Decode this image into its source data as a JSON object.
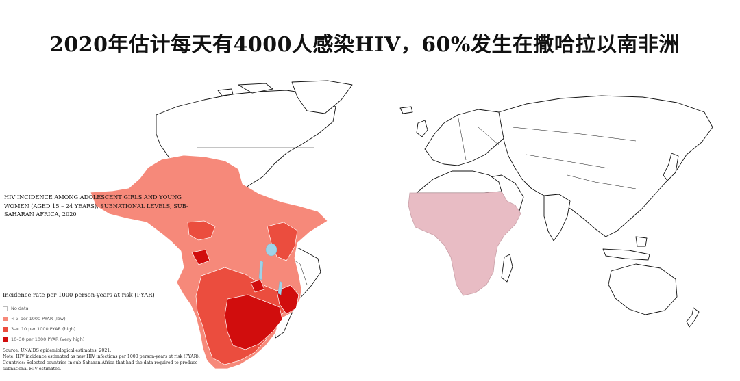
{
  "slide": {
    "title": "2020年估计每天有4000人感染HIV，60%发生在撒哈拉以南非洲"
  },
  "africa_map": {
    "title_lines": [
      "HIV INCIDENCE AMONG ADOLESCENT GIRLS AND YOUNG",
      "WOMEN (AGED 15 – 24 YEARS), SUBNATIONAL LEVELS, SUB-",
      "SAHARAN AFRICA, 2020"
    ],
    "legend": {
      "title": "Incidence rate per 1000 person-years at risk (PYAR)",
      "items": [
        {
          "label": "No data",
          "color": "#ffffff"
        },
        {
          "label": "< 3 per 1000 PYAR (low)",
          "color": "#f6897a"
        },
        {
          "label": "3–< 10 per 1000 PYAR (high)",
          "color": "#eb4d3e"
        },
        {
          "label": "10–30 per 1000 PYAR (very high)",
          "color": "#d10d0d"
        }
      ]
    },
    "notes": [
      "Source: UNAIDS epidemiological estimates, 2021.",
      "Note: HIV incidence estimated as new HIV infections per 1000 person-years at risk (PYAR).",
      "Countries: Selected countries in sub-Saharan Africa that had the data required to produce",
      "subnational HIV estimates."
    ]
  },
  "world_map": {
    "highlight_color": "#e8bcc4",
    "land_color": "#ffffff",
    "outline_color": "#111111"
  }
}
